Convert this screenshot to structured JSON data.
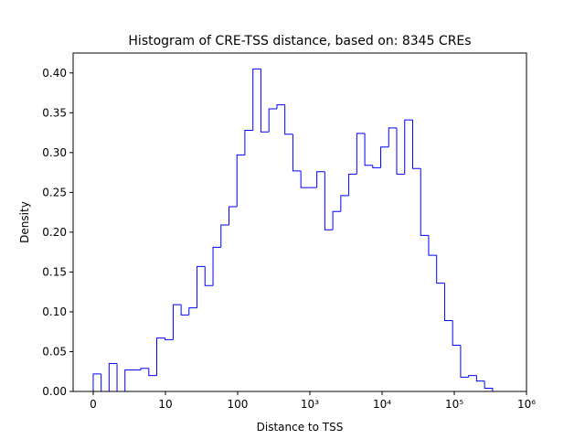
{
  "chart_data": {
    "type": "histogram",
    "title": "Histogram of CRE-TSS distance, based on: 8345 CREs",
    "xlabel": "Distance to TSS",
    "ylabel": "Density",
    "xscale": "symlog",
    "linthresh": 10,
    "color": "#0000ff",
    "bins": [
      0,
      1.1,
      2.2,
      3.3,
      4.4,
      5.5,
      6.6,
      7.7,
      8.8,
      9.95,
      12.8,
      16.5,
      21.2,
      27.4,
      35.3,
      45.6,
      58.8,
      75.9,
      97.9,
      126,
      163,
      210,
      271,
      350,
      451,
      582,
      751,
      969,
      1250,
      1612,
      2080,
      2683,
      3462,
      4466,
      5761,
      7430,
      9585,
      12365,
      15950,
      20578,
      26546,
      34245,
      44177,
      56990,
      73517,
      94840,
      122345,
      157830,
      203600,
      262650,
      338840
    ],
    "values": [
      0.022,
      0,
      0.035,
      0,
      0.027,
      0.027,
      0.029,
      0.02,
      0.067,
      0.065,
      0.109,
      0.096,
      0.105,
      0.157,
      0.133,
      0.181,
      0.209,
      0.232,
      0.297,
      0.328,
      0.405,
      0.326,
      0.355,
      0.36,
      0.323,
      0.277,
      0.256,
      0.256,
      0.276,
      0.203,
      0.226,
      0.246,
      0.273,
      0.324,
      0.284,
      0.281,
      0.307,
      0.331,
      0.273,
      0.341,
      0.28,
      0.196,
      0.171,
      0.136,
      0.089,
      0.058,
      0.018,
      0.02,
      0.013,
      0.004
    ],
    "xlim": [
      -2.78,
      1000000
    ],
    "xticks": [
      0,
      10,
      100,
      {
        "value": 1000,
        "label": "10³"
      },
      {
        "value": 10000,
        "label": "10⁴"
      },
      {
        "value": 100000,
        "label": "10⁵"
      },
      {
        "value": 1000000,
        "label": "10⁶"
      }
    ],
    "ylim": [
      0,
      0.425
    ],
    "yticks": [
      {
        "value": 0,
        "label": "0.00"
      },
      {
        "value": 0.05,
        "label": "0.05"
      },
      {
        "value": 0.1,
        "label": "0.10"
      },
      {
        "value": 0.15,
        "label": "0.15"
      },
      {
        "value": 0.2,
        "label": "0.20"
      },
      {
        "value": 0.25,
        "label": "0.25"
      },
      {
        "value": 0.3,
        "label": "0.30"
      },
      {
        "value": 0.35,
        "label": "0.35"
      },
      {
        "value": 0.4,
        "label": "0.40"
      }
    ]
  }
}
